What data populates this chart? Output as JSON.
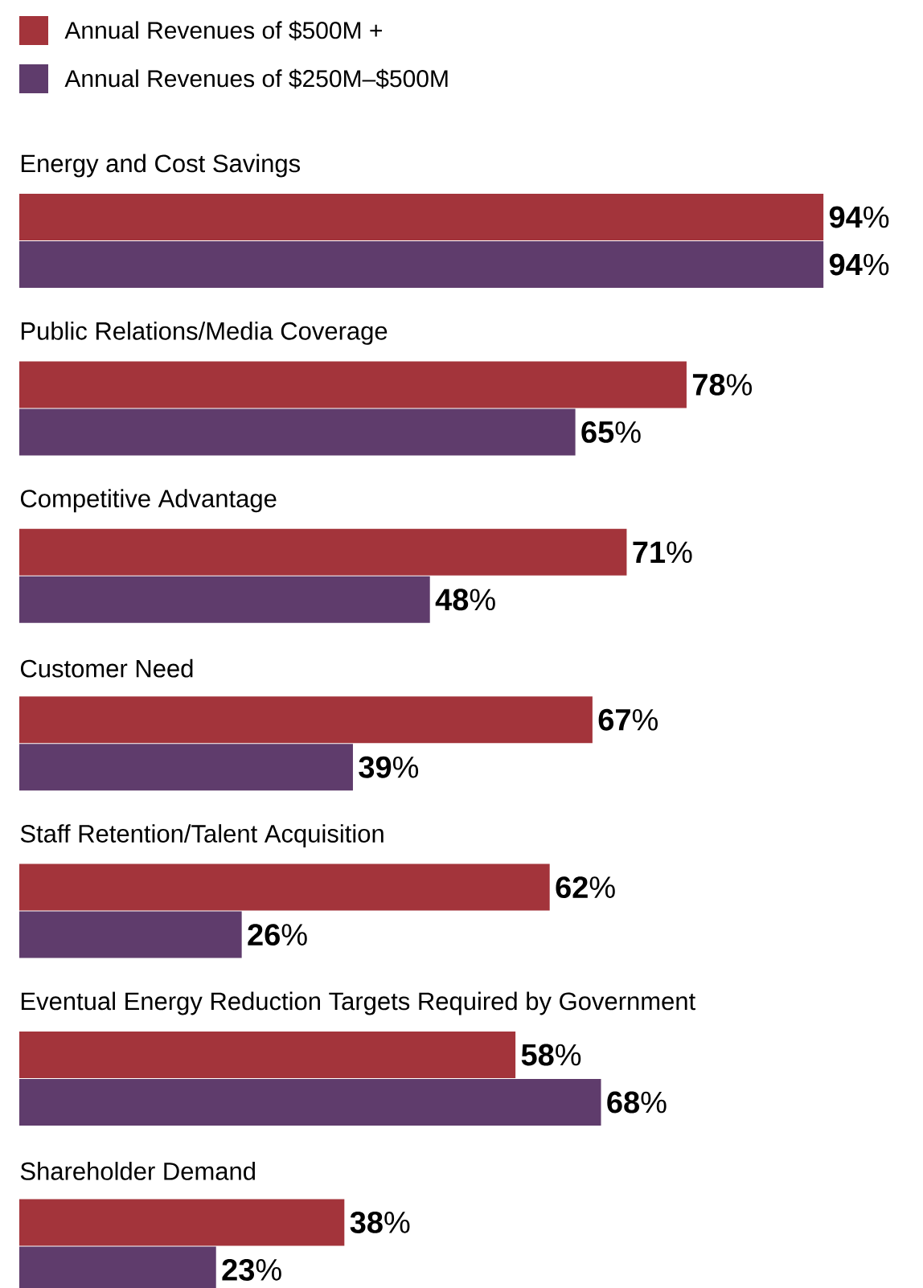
{
  "chart_data": {
    "type": "bar",
    "orientation": "horizontal",
    "legend": "top left",
    "categories": [
      "Energy and Cost Savings",
      "Public Relations/Media Coverage",
      "Competitive Advantage",
      "Customer Need",
      "Staff Retention/Talent Acquisition",
      "Eventual Energy Reduction Targets Required by Government",
      "Shareholder Demand"
    ],
    "series": [
      {
        "name": "Annual Revenues of $500M +",
        "color": "#a3343b",
        "values": [
          94,
          78,
          71,
          67,
          62,
          58,
          38
        ],
        "value_labels": [
          "**94**%",
          "**78**%",
          "**71**%",
          "**67**%",
          "**62**%",
          "**58**%",
          "**38**%"
        ]
      },
      {
        "name": "Annual Revenues of $250M–$500M",
        "color": "#5f3c6c",
        "values": [
          94,
          65,
          48,
          39,
          26,
          68,
          23
        ],
        "value_labels": [
          "**94**%",
          "**65**%",
          "**48**%",
          "**39**%",
          "**26**%",
          "**68**%",
          "**23**%"
        ]
      }
    ]
  }
}
